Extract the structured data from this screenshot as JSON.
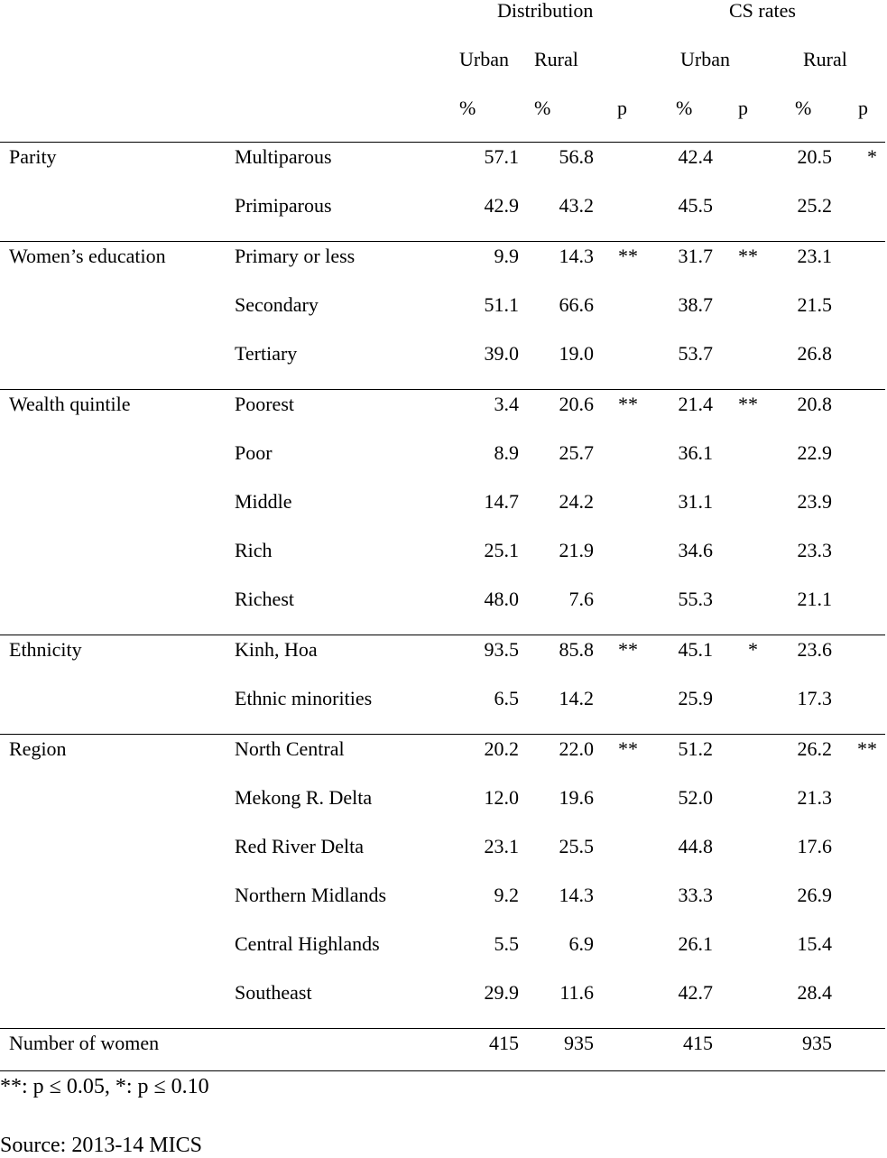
{
  "header": {
    "group_distribution": "Distribution",
    "group_cs_rates": "CS rates",
    "urban": "Urban",
    "rural": "Rural",
    "pct": "%",
    "p": "p"
  },
  "groups": [
    {
      "label": "Parity",
      "rows": [
        {
          "sub": "Multiparous",
          "du": "57.1",
          "dr": "56.8",
          "dp": "",
          "cu": "42.4",
          "cup": "",
          "cr": "20.5",
          "crp": "*"
        },
        {
          "sub": "Primiparous",
          "du": "42.9",
          "dr": "43.2",
          "dp": "",
          "cu": "45.5",
          "cup": "",
          "cr": "25.2",
          "crp": ""
        }
      ]
    },
    {
      "label": "Women’s education",
      "rows": [
        {
          "sub": "Primary or less",
          "du": "9.9",
          "dr": "14.3",
          "dp": "**",
          "cu": "31.7",
          "cup": "**",
          "cr": "23.1",
          "crp": ""
        },
        {
          "sub": "Secondary",
          "du": "51.1",
          "dr": "66.6",
          "dp": "",
          "cu": "38.7",
          "cup": "",
          "cr": "21.5",
          "crp": ""
        },
        {
          "sub": "Tertiary",
          "du": "39.0",
          "dr": "19.0",
          "dp": "",
          "cu": "53.7",
          "cup": "",
          "cr": "26.8",
          "crp": ""
        }
      ]
    },
    {
      "label": "Wealth quintile",
      "rows": [
        {
          "sub": "Poorest",
          "du": "3.4",
          "dr": "20.6",
          "dp": "**",
          "cu": "21.4",
          "cup": "**",
          "cr": "20.8",
          "crp": ""
        },
        {
          "sub": "Poor",
          "du": "8.9",
          "dr": "25.7",
          "dp": "",
          "cu": "36.1",
          "cup": "",
          "cr": "22.9",
          "crp": ""
        },
        {
          "sub": "Middle",
          "du": "14.7",
          "dr": "24.2",
          "dp": "",
          "cu": "31.1",
          "cup": "",
          "cr": "23.9",
          "crp": ""
        },
        {
          "sub": "Rich",
          "du": "25.1",
          "dr": "21.9",
          "dp": "",
          "cu": "34.6",
          "cup": "",
          "cr": "23.3",
          "crp": ""
        },
        {
          "sub": "Richest",
          "du": "48.0",
          "dr": "7.6",
          "dp": "",
          "cu": "55.3",
          "cup": "",
          "cr": "21.1",
          "crp": ""
        }
      ]
    },
    {
      "label": "Ethnicity",
      "rows": [
        {
          "sub": "Kinh, Hoa",
          "du": "93.5",
          "dr": "85.8",
          "dp": "**",
          "cu": "45.1",
          "cup": "*",
          "cr": "23.6",
          "crp": ""
        },
        {
          "sub": "Ethnic minorities",
          "du": "6.5",
          "dr": "14.2",
          "dp": "",
          "cu": "25.9",
          "cup": "",
          "cr": "17.3",
          "crp": ""
        }
      ]
    },
    {
      "label": "Region",
      "rows": [
        {
          "sub": "North Central",
          "du": "20.2",
          "dr": "22.0",
          "dp": "**",
          "cu": "51.2",
          "cup": "",
          "cr": "26.2",
          "crp": "**"
        },
        {
          "sub": "Mekong R. Delta",
          "du": "12.0",
          "dr": "19.6",
          "dp": "",
          "cu": "52.0",
          "cup": "",
          "cr": "21.3",
          "crp": ""
        },
        {
          "sub": "Red River Delta",
          "du": "23.1",
          "dr": "25.5",
          "dp": "",
          "cu": "44.8",
          "cup": "",
          "cr": "17.6",
          "crp": ""
        },
        {
          "sub": "Northern Midlands",
          "du": "9.2",
          "dr": "14.3",
          "dp": "",
          "cu": "33.3",
          "cup": "",
          "cr": "26.9",
          "crp": ""
        },
        {
          "sub": "Central Highlands",
          "du": "5.5",
          "dr": "6.9",
          "dp": "",
          "cu": "26.1",
          "cup": "",
          "cr": "15.4",
          "crp": ""
        },
        {
          "sub": "Southeast",
          "du": "29.9",
          "dr": "11.6",
          "dp": "",
          "cu": "42.7",
          "cup": "",
          "cr": "28.4",
          "crp": ""
        }
      ]
    }
  ],
  "totals": {
    "label": "Number of women",
    "du": "415",
    "dr": "935",
    "cu": "415",
    "cr": "935"
  },
  "footnote": "**: p ≤ 0.05, *: p ≤ 0.10",
  "source": "Source: 2013-14 MICS"
}
